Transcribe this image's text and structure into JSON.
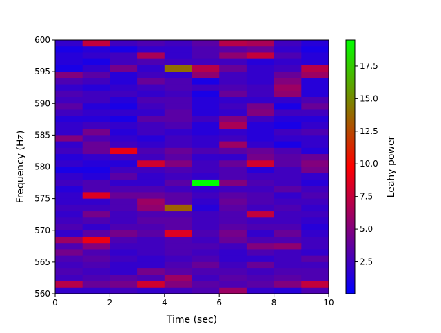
{
  "chart_data": {
    "type": "heatmap",
    "title": "",
    "xlabel": "Time (sec)",
    "ylabel": "Frequency (Hz)",
    "colorbar_label": "Leahy power",
    "xlim": [
      0,
      10
    ],
    "ylim": [
      560,
      600
    ],
    "x_ticks": [
      "0",
      "2",
      "4",
      "6",
      "8",
      "10"
    ],
    "y_ticks": [
      "560",
      "565",
      "570",
      "575",
      "580",
      "585",
      "590",
      "595",
      "600"
    ],
    "colorbar_ticks": [
      "2.5",
      "5.0",
      "7.5",
      "10.0",
      "12.5",
      "15.0",
      "17.5"
    ],
    "colorbar_tick_values": [
      2.5,
      5.0,
      7.5,
      10.0,
      12.5,
      15.0,
      17.5
    ],
    "color_range": [
      0.05,
      19.5
    ],
    "colormap": {
      "low": "#0000ff",
      "mid": "#ff0000",
      "high": "#00ff00"
    },
    "time_bins": [
      0,
      1,
      2,
      3,
      4,
      5,
      6,
      7,
      8,
      9,
      10
    ],
    "frequency_bins": [
      560,
      600
    ],
    "n_frequency_bins": 40,
    "grid": false,
    "values": [
      [
        2.0,
        7.5,
        2.5,
        3.0,
        2.5,
        3.5,
        7.0,
        6.5,
        2.5,
        1.5
      ],
      [
        1.0,
        1.5,
        1.0,
        2.0,
        2.0,
        3.0,
        3.5,
        4.0,
        2.0,
        1.0
      ],
      [
        1.5,
        2.0,
        2.5,
        6.5,
        2.0,
        3.0,
        5.5,
        7.5,
        3.0,
        1.5
      ],
      [
        1.5,
        1.0,
        2.5,
        3.0,
        2.5,
        2.5,
        2.5,
        1.5,
        2.0,
        1.5
      ],
      [
        1.0,
        2.0,
        4.5,
        2.0,
        14.0,
        7.0,
        4.0,
        2.0,
        2.5,
        7.0
      ],
      [
        5.0,
        3.5,
        1.5,
        2.5,
        2.0,
        5.5,
        2.5,
        2.0,
        4.0,
        6.0
      ],
      [
        3.0,
        2.5,
        1.5,
        4.0,
        3.0,
        1.0,
        2.5,
        2.0,
        5.0,
        1.5
      ],
      [
        2.0,
        1.5,
        2.0,
        2.5,
        3.0,
        2.5,
        3.0,
        2.5,
        6.0,
        1.5
      ],
      [
        3.0,
        2.5,
        2.5,
        2.0,
        2.5,
        1.0,
        4.0,
        2.5,
        5.5,
        1.5
      ],
      [
        2.5,
        2.5,
        1.5,
        3.0,
        3.0,
        1.5,
        2.0,
        2.0,
        2.0,
        3.0
      ],
      [
        3.5,
        1.5,
        1.0,
        2.5,
        3.0,
        1.5,
        2.5,
        4.5,
        1.0,
        4.0
      ],
      [
        2.5,
        2.0,
        2.0,
        2.0,
        3.5,
        1.5,
        2.0,
        5.0,
        2.5,
        2.5
      ],
      [
        1.5,
        1.5,
        1.0,
        3.5,
        3.5,
        2.5,
        5.0,
        2.5,
        1.5,
        1.5
      ],
      [
        2.0,
        2.5,
        2.0,
        2.5,
        3.0,
        1.5,
        6.5,
        1.5,
        1.0,
        2.0
      ],
      [
        2.0,
        4.5,
        1.5,
        2.5,
        2.0,
        1.5,
        2.0,
        1.5,
        2.5,
        3.0
      ],
      [
        5.0,
        3.0,
        2.0,
        1.5,
        2.5,
        2.0,
        2.5,
        1.5,
        2.0,
        2.0
      ],
      [
        2.0,
        4.0,
        2.5,
        2.0,
        2.5,
        2.0,
        6.0,
        2.0,
        1.0,
        2.0
      ],
      [
        2.5,
        4.0,
        9.0,
        3.0,
        4.0,
        3.0,
        3.5,
        4.0,
        3.0,
        1.5
      ],
      [
        1.5,
        2.0,
        2.5,
        2.5,
        3.5,
        2.0,
        2.0,
        4.5,
        3.5,
        4.0
      ],
      [
        2.0,
        1.5,
        1.5,
        8.0,
        5.0,
        2.5,
        4.0,
        8.0,
        3.5,
        5.0
      ],
      [
        1.0,
        1.0,
        2.5,
        2.5,
        3.0,
        2.5,
        3.0,
        1.5,
        2.5,
        4.5
      ],
      [
        2.0,
        1.5,
        3.5,
        2.0,
        2.5,
        2.0,
        3.0,
        2.5,
        2.5,
        2.0
      ],
      [
        2.5,
        3.0,
        2.0,
        2.0,
        3.5,
        19.5,
        5.0,
        3.0,
        2.5,
        1.5
      ],
      [
        1.5,
        3.0,
        3.0,
        3.0,
        2.5,
        2.0,
        2.5,
        2.5,
        3.5,
        2.5
      ],
      [
        2.0,
        8.5,
        4.0,
        4.0,
        3.5,
        2.5,
        3.5,
        3.0,
        2.0,
        3.0
      ],
      [
        2.0,
        2.0,
        3.0,
        6.0,
        3.5,
        2.0,
        4.0,
        3.0,
        2.5,
        2.5
      ],
      [
        2.5,
        2.5,
        3.0,
        5.5,
        13.5,
        1.5,
        3.5,
        2.5,
        3.0,
        2.0
      ],
      [
        2.0,
        4.5,
        2.5,
        3.0,
        3.0,
        2.5,
        3.0,
        7.5,
        2.5,
        2.5
      ],
      [
        2.5,
        3.0,
        2.5,
        3.5,
        3.5,
        2.5,
        3.0,
        2.5,
        2.5,
        2.0
      ],
      [
        3.0,
        2.0,
        3.0,
        3.0,
        3.5,
        2.5,
        3.5,
        3.0,
        3.0,
        1.5
      ],
      [
        2.0,
        3.5,
        4.5,
        3.5,
        8.5,
        3.0,
        4.5,
        2.0,
        4.0,
        2.0
      ],
      [
        6.0,
        9.0,
        3.0,
        2.5,
        3.0,
        2.5,
        4.0,
        3.0,
        3.0,
        2.5
      ],
      [
        3.0,
        5.0,
        2.5,
        2.5,
        3.0,
        3.0,
        2.5,
        5.0,
        5.5,
        2.5
      ],
      [
        4.5,
        3.0,
        2.0,
        2.5,
        3.0,
        2.5,
        2.0,
        3.0,
        2.5,
        2.0
      ],
      [
        3.0,
        3.5,
        2.5,
        2.0,
        2.5,
        3.0,
        2.0,
        2.0,
        2.5,
        3.5
      ],
      [
        2.5,
        3.0,
        2.0,
        2.0,
        3.0,
        4.0,
        2.5,
        4.0,
        2.5,
        2.5
      ],
      [
        3.0,
        2.5,
        2.0,
        4.5,
        3.5,
        3.0,
        3.0,
        2.5,
        3.0,
        3.0
      ],
      [
        2.5,
        3.0,
        3.5,
        3.0,
        6.0,
        2.5,
        3.5,
        3.0,
        3.5,
        3.0
      ],
      [
        7.0,
        4.0,
        4.5,
        8.0,
        5.0,
        3.5,
        3.0,
        3.5,
        5.0,
        7.5
      ],
      [
        2.0,
        2.0,
        2.5,
        2.0,
        2.5,
        3.0,
        6.0,
        2.0,
        1.5,
        3.0
      ]
    ]
  }
}
